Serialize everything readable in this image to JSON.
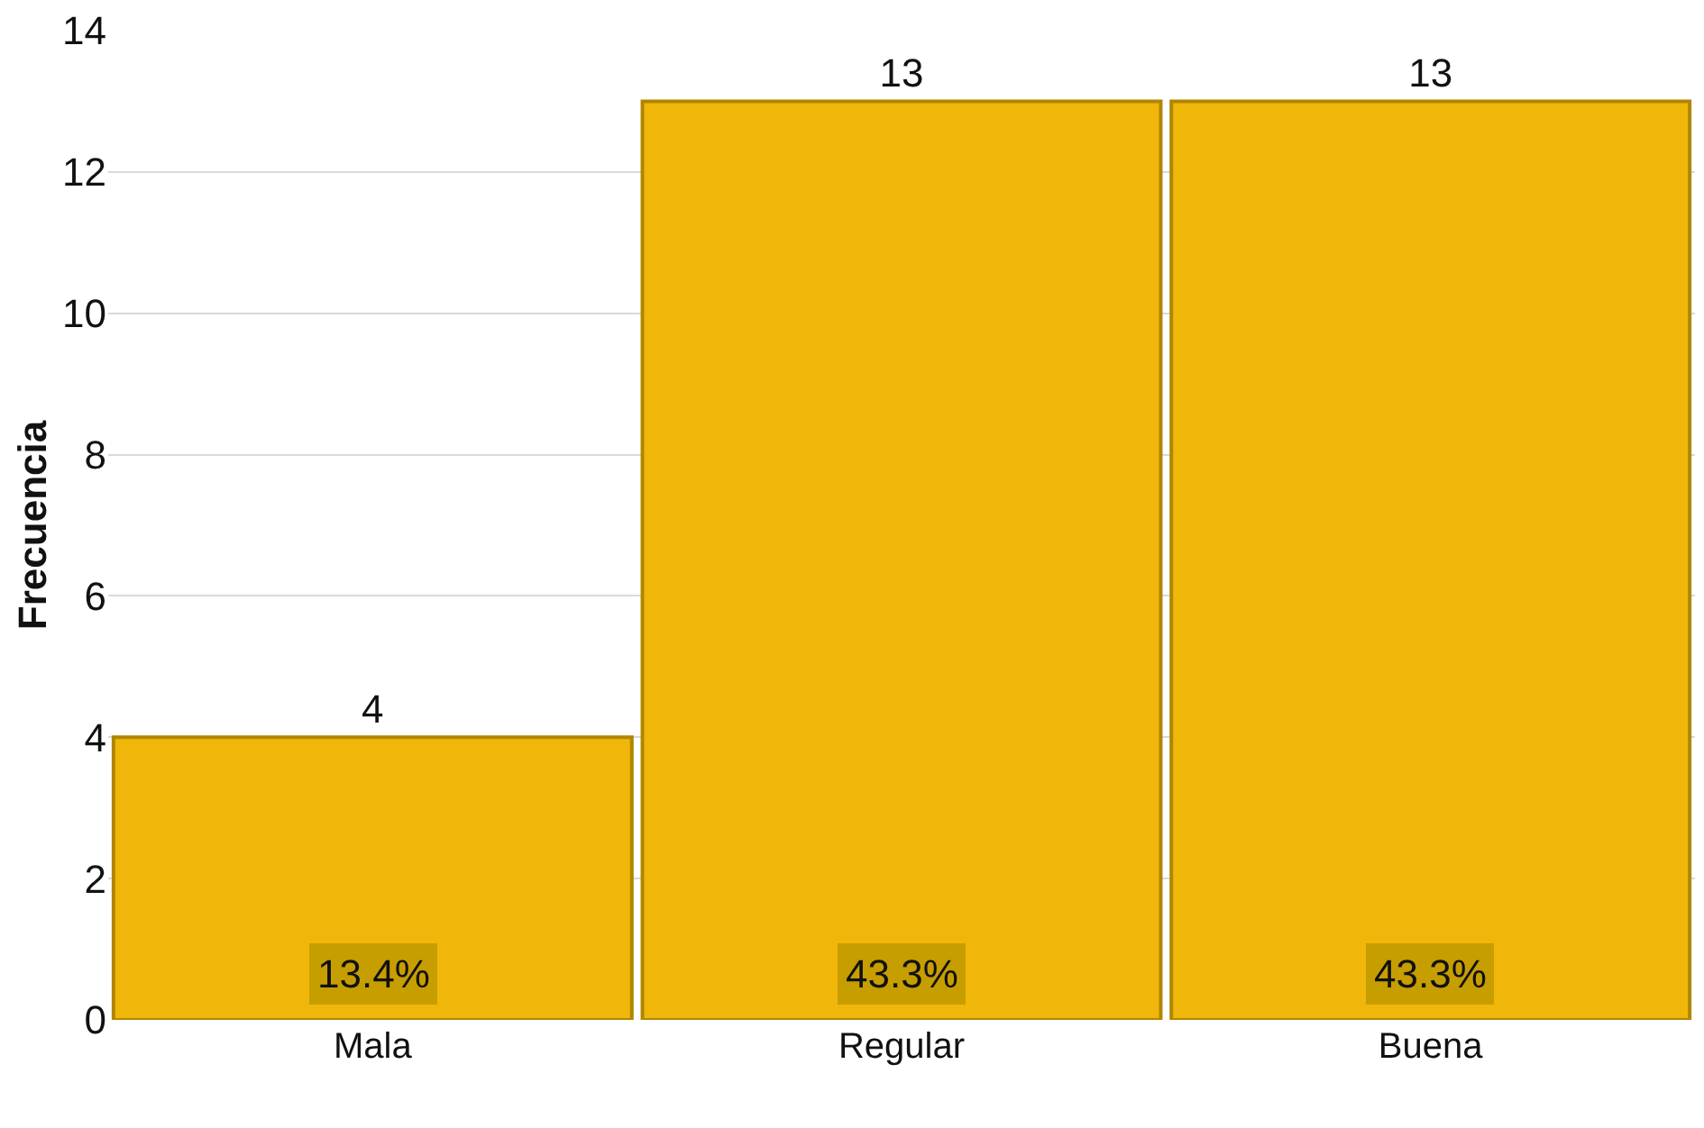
{
  "chart_data": {
    "type": "bar",
    "ylabel": "Frecuencia",
    "categories": [
      "Mala",
      "Regular",
      "Buena"
    ],
    "values": [
      4,
      13,
      13
    ],
    "color": "#f0b70a",
    "ylim": [
      0,
      14
    ],
    "yticks": [
      0,
      2,
      4,
      6,
      8,
      10,
      12,
      14
    ],
    "grid": "y",
    "data_labels": true,
    "annotations": [
      "13.4%",
      "43.3%",
      "43.3%"
    ]
  }
}
